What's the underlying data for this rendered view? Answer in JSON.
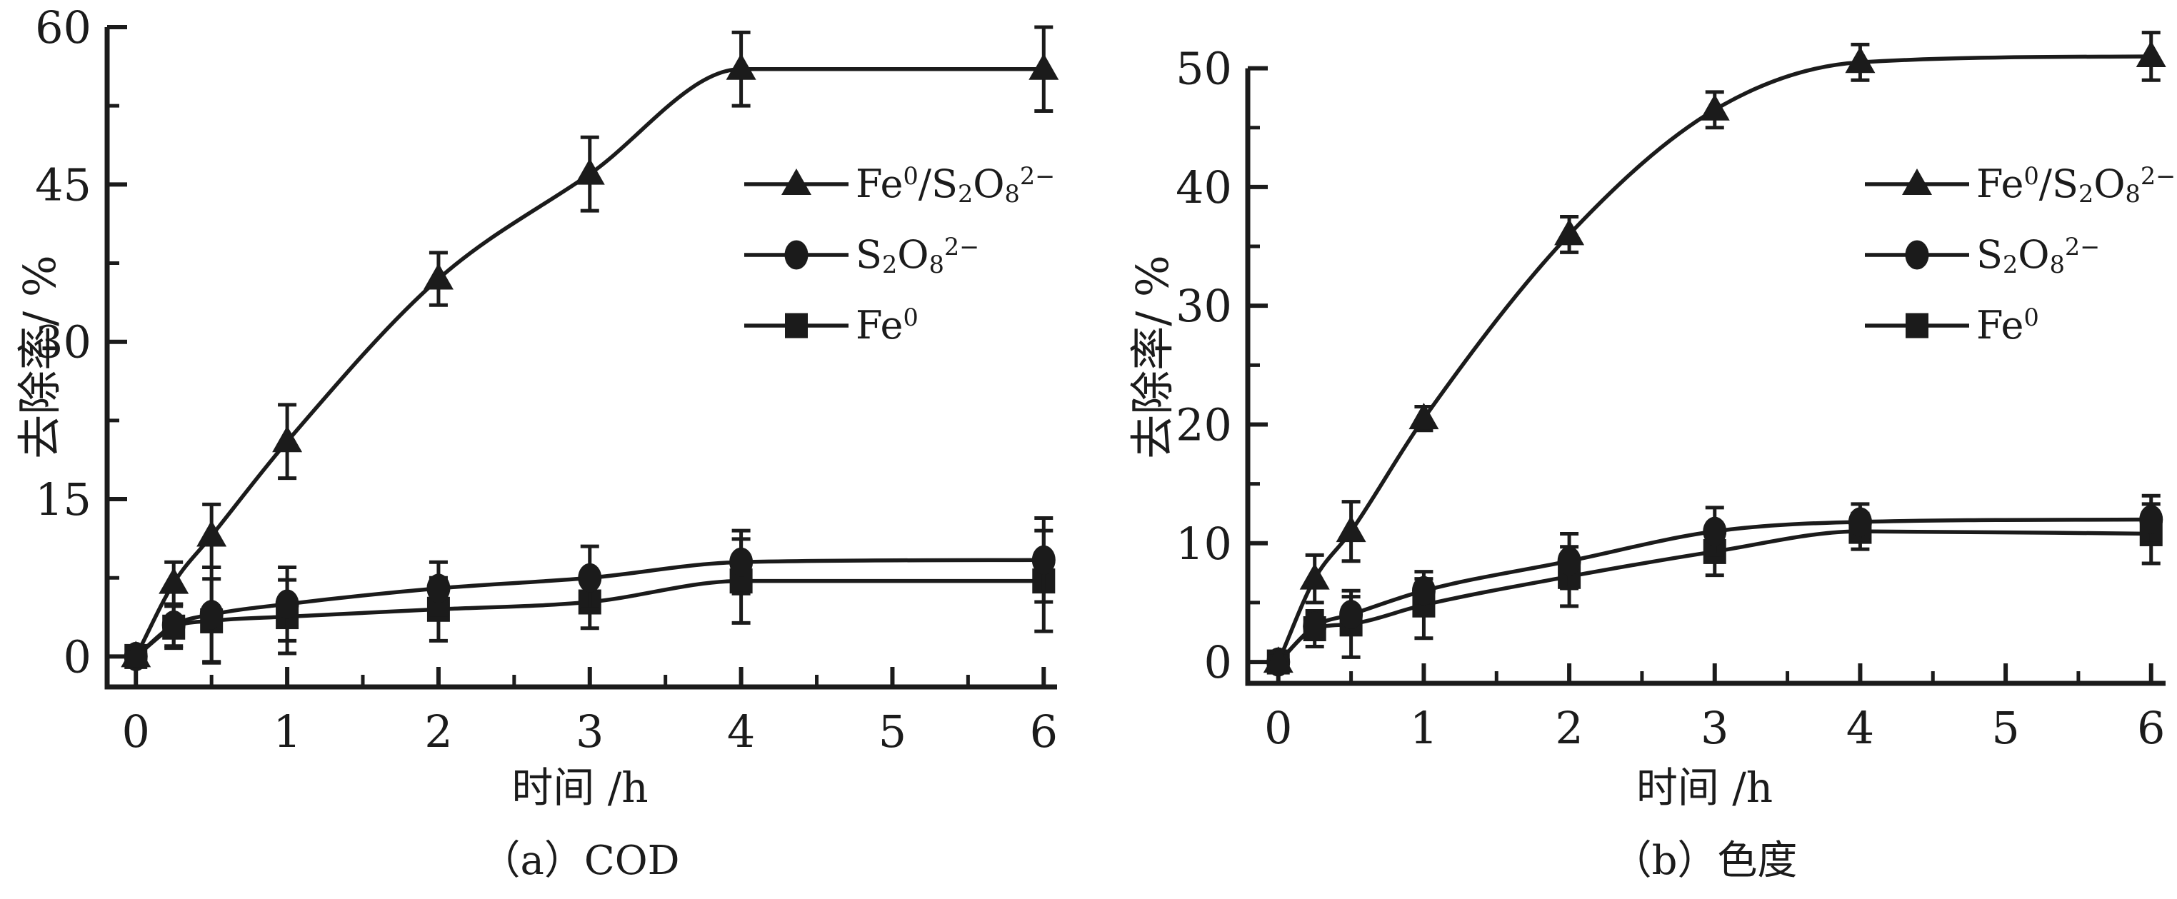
{
  "figure": {
    "background": "#ffffff",
    "ink_color": "#1b1b1b"
  },
  "chart_data": [
    {
      "type": "line",
      "panel": "a",
      "title": "（a）COD",
      "xlabel": "时间 /h",
      "ylabel": "去除率/ %",
      "grid": "off",
      "legend_position": "inside-right",
      "xlim": [
        -0.19,
        6.06
      ],
      "ylim": [
        -2.9,
        60
      ],
      "x_ticks": {
        "major": [
          0,
          1,
          2,
          3,
          4,
          5,
          6
        ],
        "labels": [
          "0",
          "1",
          "2",
          "3",
          "4",
          "5",
          "6"
        ],
        "minor": [
          0.5,
          1.5,
          2.5,
          3.5,
          4.5,
          5.5
        ]
      },
      "y_ticks": {
        "major": [
          0,
          15,
          30,
          45,
          60
        ],
        "labels": [
          "0",
          "15",
          "30",
          "45",
          "60"
        ],
        "minor": [
          7.5,
          22.5,
          37.5,
          52.5
        ]
      },
      "x": [
        0,
        0.25,
        0.5,
        1,
        2,
        3,
        4,
        6
      ],
      "series": [
        {
          "key": "fe0_s2o8",
          "name": "Fe⁰/S₂O₈²⁻",
          "marker": "triangle",
          "label_parts": [
            {
              "t": "Fe"
            },
            {
              "t": "0",
              "s": "sup"
            },
            {
              "t": "/S"
            },
            {
              "t": "2",
              "s": "sub"
            },
            {
              "t": "O"
            },
            {
              "t": "8",
              "s": "sub"
            },
            {
              "t": "2−",
              "s": "sup"
            }
          ],
          "values": [
            0,
            7,
            11.5,
            20.5,
            36,
            46,
            56,
            56
          ],
          "errors": [
            0.8,
            2,
            3,
            3.5,
            2.5,
            3.5,
            3.5,
            4
          ]
        },
        {
          "key": "s2o8",
          "name": "S₂O₈²⁻",
          "marker": "circle",
          "label_parts": [
            {
              "t": "S"
            },
            {
              "t": "2",
              "s": "sub"
            },
            {
              "t": "O"
            },
            {
              "t": "8",
              "s": "sub"
            },
            {
              "t": "2−",
              "s": "sup"
            }
          ],
          "values": [
            0,
            3,
            4,
            5,
            6.5,
            7.5,
            9,
            9.2
          ],
          "errors": [
            0.8,
            2,
            4.5,
            3.5,
            2.5,
            3,
            3,
            4
          ]
        },
        {
          "key": "fe0",
          "name": "Fe⁰",
          "marker": "square",
          "label_parts": [
            {
              "t": "Fe"
            },
            {
              "t": "0",
              "s": "sup"
            }
          ],
          "values": [
            0,
            2.8,
            3.4,
            3.8,
            4.5,
            5.2,
            7.2,
            7.2
          ],
          "errors": [
            0.8,
            2,
            4,
            3.5,
            3,
            2.5,
            4,
            4.8
          ]
        }
      ]
    },
    {
      "type": "line",
      "panel": "b",
      "title": "（b）色度",
      "xlabel": "时间 /h",
      "ylabel": "去除率/ %",
      "grid": "off",
      "legend_position": "inside-right",
      "xlim": [
        -0.21,
        6.07
      ],
      "ylim": [
        -1.8,
        52.5
      ],
      "x_ticks": {
        "major": [
          0,
          1,
          2,
          3,
          4,
          5,
          6
        ],
        "labels": [
          "0",
          "1",
          "2",
          "3",
          "4",
          "5",
          "6"
        ],
        "minor": [
          0.5,
          1.5,
          2.5,
          3.5,
          4.5,
          5.5
        ]
      },
      "y_ticks": {
        "major": [
          0,
          10,
          20,
          30,
          40,
          50
        ],
        "labels": [
          "0",
          "10",
          "20",
          "30",
          "40",
          "50"
        ],
        "minor": [
          5,
          15,
          25,
          35,
          45
        ]
      },
      "x": [
        0,
        0.25,
        0.5,
        1,
        2,
        3,
        4,
        6
      ],
      "series": [
        {
          "key": "fe0_s2o8",
          "name": "Fe⁰/S₂O₈²⁻",
          "marker": "triangle",
          "label_parts": [
            {
              "t": "Fe"
            },
            {
              "t": "0",
              "s": "sup"
            },
            {
              "t": "/S"
            },
            {
              "t": "2",
              "s": "sub"
            },
            {
              "t": "O"
            },
            {
              "t": "8",
              "s": "sub"
            },
            {
              "t": "2−",
              "s": "sup"
            }
          ],
          "values": [
            0,
            7,
            11,
            20.5,
            36,
            46.5,
            50.5,
            51
          ],
          "errors": [
            0.5,
            2,
            2.5,
            1,
            1.5,
            1.5,
            1.5,
            2
          ]
        },
        {
          "key": "s2o8",
          "name": "S₂O₈²⁻",
          "marker": "circle",
          "label_parts": [
            {
              "t": "S"
            },
            {
              "t": "2",
              "s": "sub"
            },
            {
              "t": "O"
            },
            {
              "t": "8",
              "s": "sub"
            },
            {
              "t": "2−",
              "s": "sup"
            }
          ],
          "values": [
            0,
            3,
            4,
            6,
            8.5,
            11,
            11.8,
            12
          ],
          "errors": [
            0.5,
            1,
            1.5,
            1,
            2.3,
            2,
            1.5,
            2
          ]
        },
        {
          "key": "fe0",
          "name": "Fe⁰",
          "marker": "square",
          "label_parts": [
            {
              "t": "Fe"
            },
            {
              "t": "0",
              "s": "sup"
            }
          ],
          "values": [
            0,
            2.8,
            3.2,
            4.8,
            7.2,
            9.3,
            11,
            10.8
          ],
          "errors": [
            0.5,
            1.5,
            2.8,
            2.8,
            2.5,
            2,
            1.5,
            2.5
          ]
        }
      ]
    }
  ]
}
